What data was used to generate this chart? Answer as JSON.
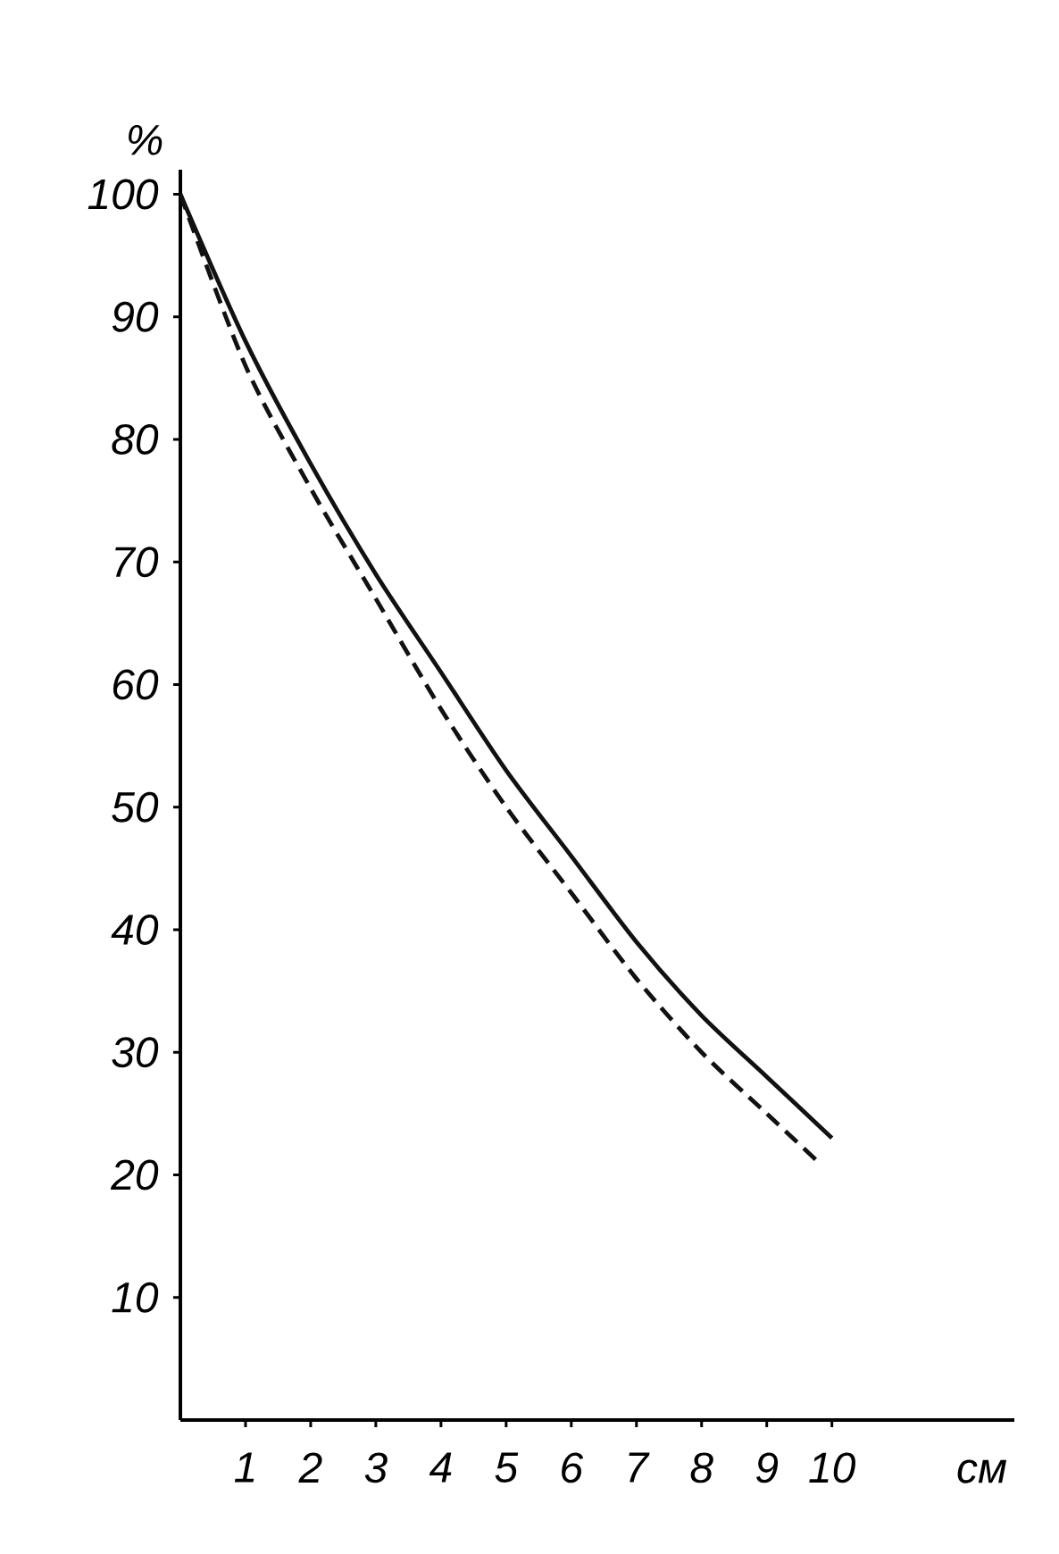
{
  "chart_data": {
    "type": "line",
    "xlabel": "см",
    "ylabel": "%",
    "xlim": [
      0,
      12.8
    ],
    "ylim": [
      0,
      102
    ],
    "xticks": [
      1,
      2,
      3,
      4,
      5,
      6,
      7,
      8,
      9,
      10
    ],
    "yticks": [
      10,
      20,
      30,
      40,
      50,
      60,
      70,
      80,
      90,
      100
    ],
    "series": [
      {
        "color": "#111111",
        "line_style": "solid",
        "x": [
          0,
          1,
          2,
          3,
          4,
          5,
          6,
          7,
          8,
          9,
          10
        ],
        "values": [
          100,
          88,
          78,
          69,
          61,
          53,
          46,
          39,
          33,
          28,
          23
        ]
      },
      {
        "color": "#111111",
        "line_style": "dashed",
        "x": [
          0,
          1,
          2,
          3,
          4,
          5,
          6,
          7,
          8,
          9,
          9.8
        ],
        "values": [
          100,
          86,
          76,
          67,
          58,
          50,
          43,
          36,
          30,
          25,
          21
        ]
      }
    ]
  }
}
